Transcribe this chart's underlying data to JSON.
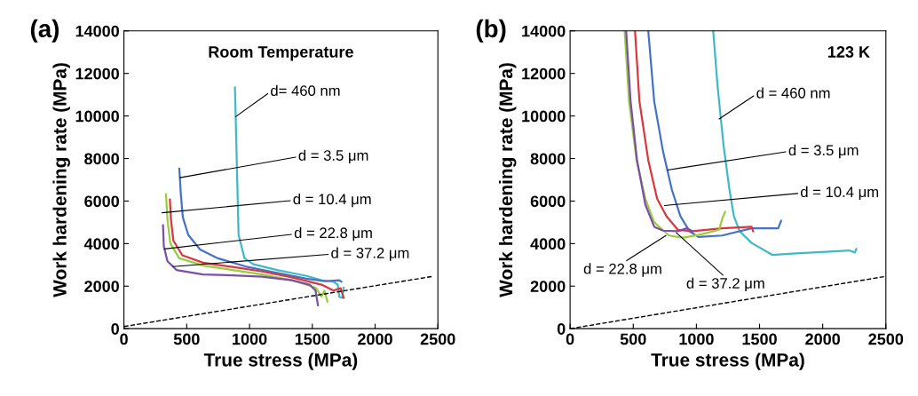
{
  "chart_data": [
    {
      "type": "line",
      "title": "(a)",
      "subtitle": "Room Temperature",
      "xlabel": "True stress (MPa)",
      "ylabel": "Work hardening rate (MPa)",
      "xlim": [
        0,
        2500
      ],
      "xticks": [
        0,
        500,
        1000,
        1500,
        2000,
        2500
      ],
      "ylim": [
        0,
        14000
      ],
      "yticks": [
        0,
        2000,
        4000,
        6000,
        8000,
        10000,
        12000,
        14000
      ],
      "marker": "none",
      "series": [
        {
          "color": "#3fb8c8",
          "x": [
            884,
            913,
            960,
            1031,
            1219,
            1455,
            1573,
            1668,
            1703,
            1715,
            1738,
            1750
          ],
          "values": [
            11340,
            4410,
            3310,
            3030,
            2760,
            2480,
            2280,
            2210,
            2070,
            1490,
            1450,
            1930
          ]
        },
        {
          "color": "#4472c4",
          "x": [
            441,
            453,
            469,
            512,
            606,
            748,
            984,
            1219,
            1455,
            1597,
            1715,
            1731
          ],
          "values": [
            7520,
            6350,
            5240,
            4410,
            3720,
            3310,
            2900,
            2620,
            2350,
            2230,
            2280,
            2210
          ]
        },
        {
          "color": "#d9363e",
          "x": [
            366,
            375,
            394,
            465,
            630,
            866,
            1101,
            1337,
            1573,
            1668,
            1726,
            1750
          ],
          "values": [
            6070,
            5100,
            4140,
            3450,
            3100,
            2900,
            2690,
            2410,
            2070,
            1790,
            1900,
            1450
          ]
        },
        {
          "color": "#9acd3c",
          "x": [
            335,
            347,
            370,
            441,
            630,
            866,
            1101,
            1337,
            1526,
            1573,
            1597,
            1620
          ],
          "values": [
            6320,
            5100,
            4000,
            3310,
            2970,
            2760,
            2550,
            2280,
            1930,
            1520,
            1790,
            1270
          ]
        },
        {
          "color": "#7b4fa8",
          "x": [
            311,
            318,
            347,
            418,
            630,
            866,
            1101,
            1337,
            1479,
            1526,
            1545
          ],
          "values": [
            4860,
            3860,
            3170,
            2760,
            2550,
            2510,
            2440,
            2280,
            2070,
            1790,
            1100
          ]
        },
        {
          "color": "#000000",
          "line_style": "dashed",
          "x": [
            0,
            2450
          ],
          "values": [
            100,
            2450
          ]
        }
      ],
      "annotations": [
        {
          "text": "d= 460 nm",
          "x": 890,
          "y": 9970
        },
        {
          "text": "d = 3.5 μm",
          "x": 445,
          "y": 7100
        },
        {
          "text": "d = 10.4 μm",
          "x": 304,
          "y": 5450
        },
        {
          "text": "d = 22.8 μm",
          "x": 323,
          "y": 3750
        },
        {
          "text": "d = 37.2 μm",
          "x": 390,
          "y": 2920
        }
      ]
    },
    {
      "type": "line",
      "title": "(b)",
      "subtitle": "123 K",
      "xlabel": "True stress (MPa)",
      "ylabel": "Work hardening rate (MPa)",
      "xlim": [
        0,
        2500
      ],
      "xticks": [
        0,
        500,
        1000,
        1500,
        2000,
        2500
      ],
      "ylim": [
        0,
        14000
      ],
      "yticks": [
        0,
        2000,
        4000,
        6000,
        8000,
        10000,
        12000,
        14000
      ],
      "marker": "none",
      "series": [
        {
          "color": "#3fb8c8",
          "x": [
            1133,
            1168,
            1215,
            1262,
            1297,
            1343,
            1437,
            1600,
            1787,
            2021,
            2208,
            2255,
            2266
          ],
          "values": [
            14000,
            11390,
            8610,
            6530,
            5280,
            4580,
            4030,
            3470,
            3540,
            3610,
            3680,
            3580,
            3750
          ]
        },
        {
          "color": "#4472c4",
          "x": [
            619,
            666,
            736,
            806,
            874,
            946,
            1016,
            1203,
            1437,
            1647,
            1671
          ],
          "values": [
            14000,
            10690,
            8330,
            6530,
            5280,
            4580,
            4310,
            4380,
            4720,
            4720,
            5070
          ]
        },
        {
          "color": "#d9363e",
          "x": [
            514,
            549,
            619,
            689,
            764,
            853,
            970,
            1203,
            1437,
            1449
          ],
          "values": [
            14000,
            10690,
            7920,
            6110,
            5280,
            4650,
            4580,
            4720,
            4790,
            4580
          ]
        },
        {
          "color": "#9acd3c",
          "x": [
            432,
            467,
            526,
            596,
            666,
            783,
            900,
            1040,
            1180,
            1203,
            1227
          ],
          "values": [
            14000,
            10690,
            7920,
            6110,
            5000,
            4380,
            4280,
            4440,
            4650,
            5140,
            5490
          ]
        },
        {
          "color": "#7b4fa8",
          "x": [
            444,
            479,
            530,
            596,
            666,
            736,
            853,
            923,
            970
          ],
          "values": [
            14000,
            10690,
            7920,
            5830,
            4790,
            4610,
            4580,
            4720,
            4580
          ]
        },
        {
          "color": "#000000",
          "line_style": "dashed",
          "x": [
            0,
            2500
          ],
          "values": [
            0,
            2460
          ]
        }
      ],
      "annotations": [
        {
          "text": "d = 460 nm",
          "x": 1180,
          "y": 9860
        },
        {
          "text": "d = 3.5 μm",
          "x": 771,
          "y": 7460
        },
        {
          "text": "d = 10.4 μm",
          "x": 748,
          "y": 5790
        },
        {
          "text": "d = 22.8 μm",
          "x": 759,
          "y": 4380
        },
        {
          "text": "d = 37.2 μm",
          "x": 841,
          "y": 4510
        }
      ]
    }
  ]
}
